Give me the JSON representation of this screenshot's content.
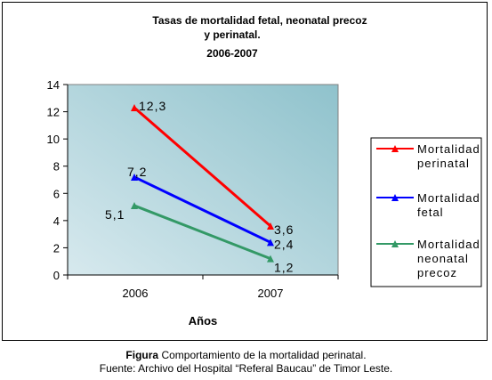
{
  "chart_data": {
    "type": "line",
    "title_lines": [
      "Tasas de mortalidad fetal, neonatal precoz",
      "y perinatal.",
      "2006-2007"
    ],
    "xlabel": "Años",
    "ylabel": "",
    "categories": [
      "2006",
      "2007"
    ],
    "ylim": [
      0,
      14
    ],
    "yticks": [
      "0",
      "2",
      "4",
      "6",
      "8",
      "10",
      "12",
      "14"
    ],
    "grid": false,
    "legend_position": "right",
    "series": [
      {
        "name": "Mortalidad perinatal",
        "legend_lines": [
          "Mortalidad",
          "perinatal"
        ],
        "values": [
          12.3,
          3.6
        ],
        "labels": [
          "12,3",
          "3,6"
        ],
        "color": "#ff0000"
      },
      {
        "name": "Mortalidad fetal",
        "legend_lines": [
          "Mortalidad",
          "fetal"
        ],
        "values": [
          7.2,
          2.4
        ],
        "labels": [
          "7,2",
          "2,4"
        ],
        "color": "#0000ff"
      },
      {
        "name": "Mortalidad neonatal precoz",
        "legend_lines": [
          "Mortalidad",
          "neonatal",
          "precoz"
        ],
        "values": [
          5.1,
          1.2
        ],
        "labels": [
          "5,1",
          "1,2"
        ],
        "color": "#339966"
      }
    ],
    "plot_background": "#b0d2d8"
  },
  "caption": {
    "figure_label": "Figura",
    "line1": "Comportamiento de la mortalidad perinatal.",
    "line2": "Fuente: Archivo del Hospital “Referal Baucau” de Timor Leste."
  }
}
